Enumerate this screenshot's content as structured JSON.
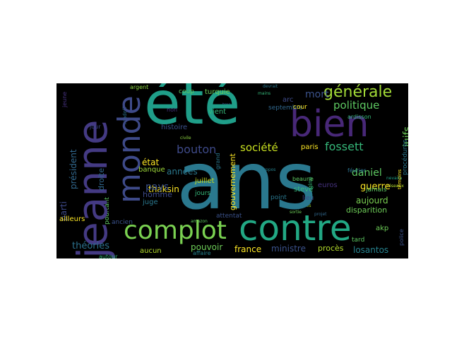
{
  "words": {
    "ans": "ans",
    "ete": "été",
    "jeanne": "jeanne",
    "contre": "contre",
    "complot": "complot",
    "monde": "monde",
    "bien": "bien",
    "generale": "générale",
    "politique": "politique",
    "bouton": "bouton",
    "societe": "société",
    "fossett": "fossett",
    "etat": "état",
    "president": "président",
    "annees": "années",
    "juillet": "juillet",
    "thaksin": "thaksin",
    "pays": "pays",
    "daniel": "daniel",
    "guerre": "guerre",
    "juifs": "juifs",
    "mort": "mort",
    "aujourd": "aujourd",
    "theories": "théories",
    "pouvoir": "pouvoir",
    "france": "france",
    "gouvernement": "gouvernement",
    "ministre": "ministre",
    "proces": "procès",
    "losantos": "losantos",
    "disparition": "disparition",
    "paris": "paris",
    "steve": "steve",
    "euros": "euros",
    "jamais": "jamais",
    "homme": "homme",
    "juge": "juge",
    "banque": "banque",
    "histoire": "histoire",
    "turquie": "turquie",
    "coup": "coup",
    "vient": "vient",
    "arc": "arc",
    "septembre": "septembre",
    "cour": "cour",
    "ardisson": "ardisson",
    "parti": "parti",
    "droite": "droite",
    "aucun": "aucun",
    "ailleurs": "ailleurs",
    "attentat": "attentat",
    "point": "point",
    "lieu": "lieu",
    "fevrier": "février",
    "akp": "akp",
    "tard": "tard",
    "procedures": "procédures",
    "argent": "argent",
    "jeune": "jeune",
    "ancien": "ancien",
    "jours": "jours",
    "jour": "jour",
    "non": "non",
    "beaune": "beaune",
    "police": "police",
    "affaire": "affaire",
    "autour": "autour",
    "pourtant": "pourtant",
    "temoins": "témoins",
    "sortie": "sortie",
    "grand": "grand",
    "madoff": "madoff",
    "heures": "heures",
    "nevada": "nevada",
    "reseaux": "réseaux",
    "propos": "propos",
    "amazon": "amazon",
    "civile": "civile",
    "projet": "projet",
    "trop": "trop",
    "origine": "origine",
    "devrait": "devrait",
    "mains": "mains"
  }
}
